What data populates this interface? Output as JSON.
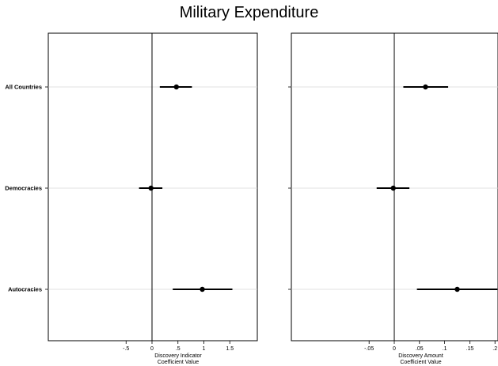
{
  "title": "Military Expenditure",
  "chart_data": [
    {
      "type": "scatter",
      "subtype": "coefficient-plot",
      "categories": [
        "All Countries",
        "Democracies",
        "Autocracies"
      ],
      "estimates": [
        0.47,
        -0.02,
        0.97
      ],
      "ci_low": [
        0.15,
        -0.25,
        0.4
      ],
      "ci_high": [
        0.77,
        0.2,
        1.55
      ],
      "xlabel": [
        "Discovery Indicator",
        "Coefficient Value"
      ],
      "xticks": [
        -0.5,
        0,
        0.5,
        1,
        1.5
      ],
      "xtick_labels": [
        "-.5",
        "0",
        ".5",
        "1",
        "1.5"
      ],
      "xlim": [
        -2.0,
        2.0
      ],
      "reference_line": 0,
      "grid": "horizontal"
    },
    {
      "type": "scatter",
      "subtype": "coefficient-plot",
      "categories": [
        "All Countries",
        "Democracies",
        "Autocracies"
      ],
      "estimates": [
        0.062,
        -0.002,
        0.125
      ],
      "ci_low": [
        0.018,
        -0.035,
        0.045
      ],
      "ci_high": [
        0.107,
        0.03,
        0.205
      ],
      "xlabel": [
        "Discovery Amount",
        "Coefficient Value"
      ],
      "xticks": [
        -0.05,
        0,
        0.05,
        0.1,
        0.15,
        0.2
      ],
      "xtick_labels": [
        "-.05",
        "0",
        ".05",
        ".1",
        ".15",
        ".2"
      ],
      "xlim": [
        -0.2,
        0.2
      ],
      "reference_line": 0,
      "grid": "horizontal"
    }
  ]
}
